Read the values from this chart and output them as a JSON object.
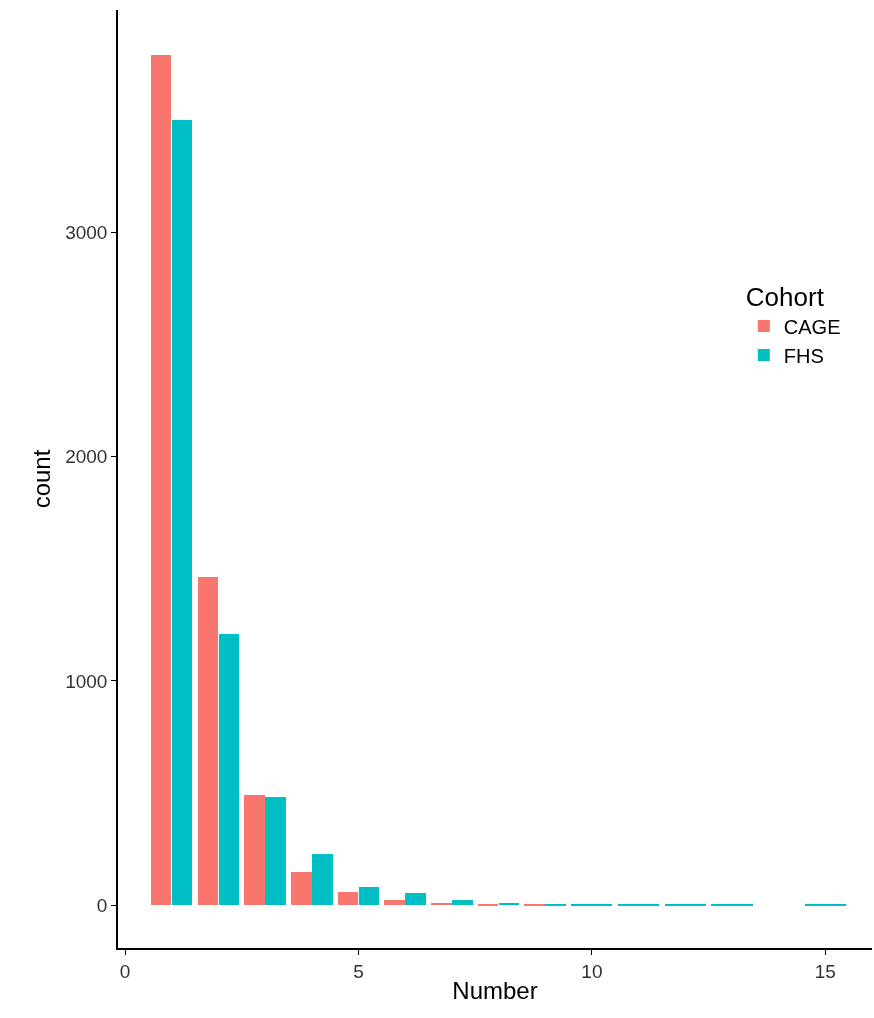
{
  "chart_data": {
    "type": "bar",
    "xlabel": "Number",
    "ylabel": "count",
    "legend_title": "Cohort",
    "x": [
      1,
      2,
      3,
      4,
      5,
      6,
      7,
      8,
      9,
      10,
      11,
      12,
      13,
      14,
      15
    ],
    "series": [
      {
        "name": "CAGE",
        "color": "#f8766d",
        "values": [
          3790,
          1465,
          490,
          150,
          61,
          26,
          9,
          4,
          3,
          null,
          null,
          null,
          null,
          null,
          null
        ]
      },
      {
        "name": "FHS",
        "color": "#00bfc4",
        "values": [
          3500,
          1210,
          485,
          227,
          84,
          57,
          26,
          12,
          8,
          2,
          2,
          2,
          2,
          null,
          2
        ]
      }
    ],
    "xlim": [
      -0.15,
      16.0
    ],
    "xticks": [
      0,
      5,
      10,
      15
    ],
    "ylim": [
      -190,
      3990
    ],
    "yticks": [
      0,
      1000,
      2000,
      3000
    ],
    "legend": "right"
  }
}
